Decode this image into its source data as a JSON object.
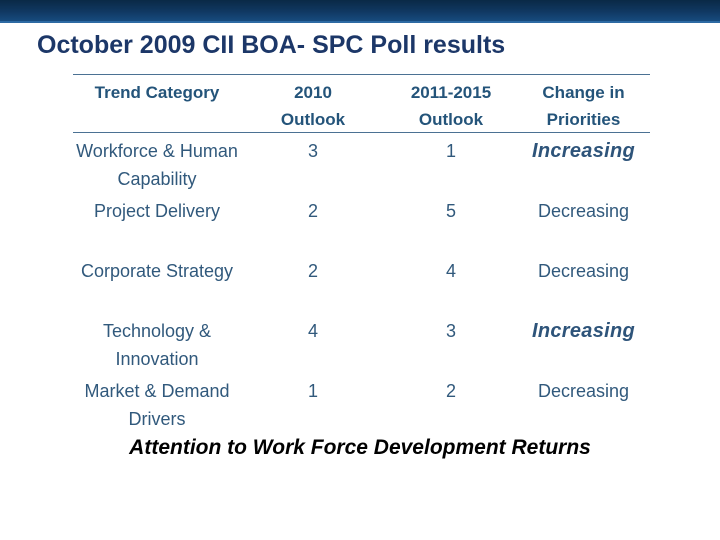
{
  "header": {
    "title": "October 2009 CII BOA- SPC Poll results"
  },
  "table": {
    "columns": [
      "Trend Category",
      "2010\nOutlook",
      "2011-2015\nOutlook",
      "Change in\nPriorities"
    ],
    "rows": [
      {
        "category": "Workforce & Human\nCapability",
        "outlook_2010": "3",
        "outlook_2011_2015": "1",
        "change": "Increasing",
        "emphasis": true
      },
      {
        "category": "Project Delivery",
        "outlook_2010": "2",
        "outlook_2011_2015": "5",
        "change": "Decreasing",
        "emphasis": false
      },
      {
        "category": "Corporate Strategy",
        "outlook_2010": "2",
        "outlook_2011_2015": "4",
        "change": "Decreasing",
        "emphasis": false
      },
      {
        "category": "Technology &\nInnovation",
        "outlook_2010": "4",
        "outlook_2011_2015": "3",
        "change": "Increasing",
        "emphasis": true
      },
      {
        "category": "Market & Demand\nDrivers",
        "outlook_2010": "1",
        "outlook_2011_2015": "2",
        "change": "Decreasing",
        "emphasis": false
      }
    ]
  },
  "caption": {
    "text": "Attention to Work Force Development Returns"
  },
  "colors": {
    "bar_gradient_top": "#0a2946",
    "bar_gradient_bottom": "#174b7e",
    "bar_edge": "#2d6aa3",
    "title_text": "#1c3768",
    "table_header_text": "#24547a",
    "table_body_text": "#31597c",
    "table_rule": "#4b7193",
    "caption_text": "#000000"
  }
}
